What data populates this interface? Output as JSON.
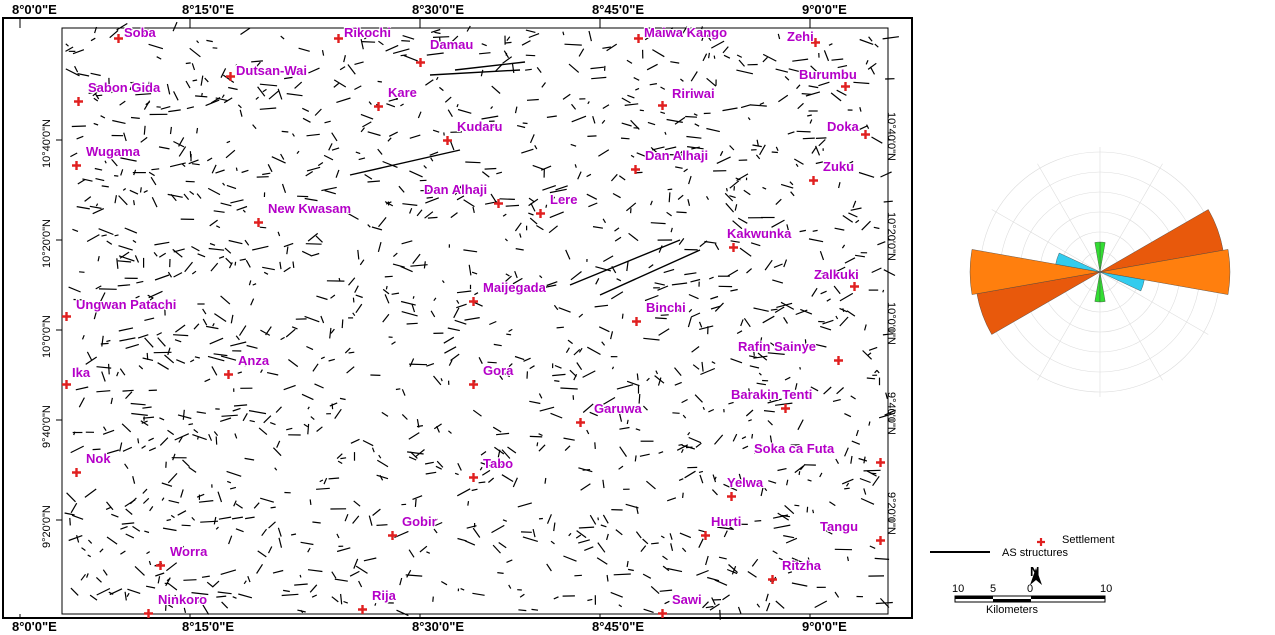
{
  "map": {
    "top_ticks": [
      "8°0'0\"E",
      "8°15'0\"E",
      "8°30'0\"E",
      "8°45'0\"E",
      "9°0'0\"E"
    ],
    "bottom_ticks": [
      "8°0'0\"E",
      "8°15'0\"E",
      "8°30'0\"E",
      "8°45'0\"E",
      "9°0'0\"E"
    ],
    "left_ticks": [
      "10°40'0\"N",
      "10°20'0\"N",
      "10°0'0\"N",
      "9°40'0\"N",
      "9°20'0\"N"
    ],
    "right_ticks": [
      "10°40'0\"N",
      "10°20'0\"N",
      "10°0'0\"N",
      "9°40'0\"N",
      "9°20'0\"N"
    ],
    "settlements": [
      "Soba",
      "Rikochi",
      "Damau",
      "Maiwa Kango",
      "Zehi",
      "Dutsan-Wai",
      "Burumbu",
      "Sabon Gida",
      "Kare",
      "Ririwai",
      "Kudaru",
      "Doka",
      "Wugama",
      "Dan Alhaji",
      "Zuku",
      "Dan Alhaji",
      "Lere",
      "New Kwasam",
      "Kakwunka",
      "Zalkuki",
      "Ungwan Patachi",
      "Maijegada",
      "Binchi",
      "Ika",
      "Anza",
      "Gora",
      "Rafin Sainye",
      "Garuwa",
      "Barakin Tenti",
      "Nok",
      "Tabo",
      "Soka ca Futa",
      "Yelwa",
      "Gobir",
      "Hurti",
      "Tangu",
      "Worra",
      "Ritzha",
      "Ninkoro",
      "Rija",
      "Sawi"
    ]
  },
  "rose_diagram": {
    "colors": {
      "dominant": "#ff7f0e",
      "dominant_dark": "#e8590c",
      "secondary": "#33dd33",
      "minor": "#33ccee"
    }
  },
  "legend": {
    "settlement_label": "Settlement",
    "structures_label": "AS structures",
    "settlement_color": "#e02020"
  },
  "scale_bar": {
    "ticks": [
      "10",
      "5",
      "0",
      "10"
    ],
    "unit": "Kilometers"
  },
  "north_arrow": {
    "label": "N"
  }
}
